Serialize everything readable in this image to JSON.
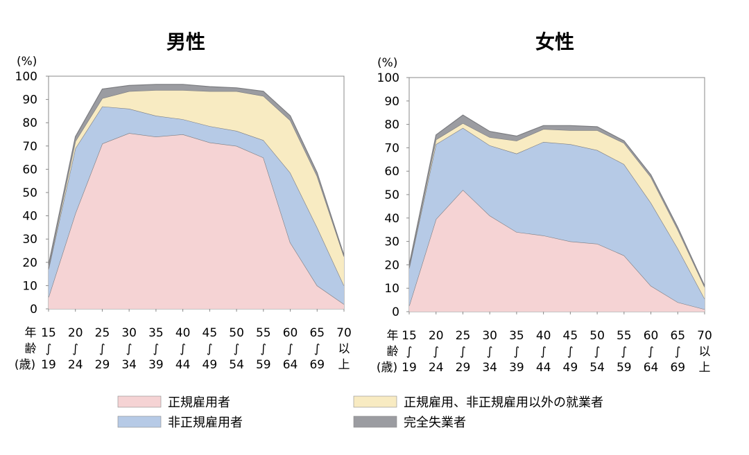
{
  "chart_data": [
    {
      "type": "area",
      "stacked": true,
      "title": "男性",
      "ylabel": "(%)",
      "ylim": [
        0,
        100
      ],
      "yticks": [
        "0",
        "10",
        "20",
        "30",
        "40",
        "50",
        "60",
        "70",
        "80",
        "90",
        "100"
      ],
      "x_header": [
        "年",
        "齢",
        "(歳)"
      ],
      "categories": [
        [
          "15",
          "∫",
          "19"
        ],
        [
          "20",
          "∫",
          "24"
        ],
        [
          "25",
          "∫",
          "29"
        ],
        [
          "30",
          "∫",
          "34"
        ],
        [
          "35",
          "∫",
          "39"
        ],
        [
          "40",
          "∫",
          "44"
        ],
        [
          "45",
          "∫",
          "49"
        ],
        [
          "50",
          "∫",
          "54"
        ],
        [
          "55",
          "∫",
          "59"
        ],
        [
          "60",
          "∫",
          "64"
        ],
        [
          "65",
          "∫",
          "69"
        ],
        [
          "70",
          "以",
          "上"
        ]
      ],
      "totals": [
        19,
        74,
        94.5,
        96,
        96.5,
        96.5,
        95.5,
        95,
        93.5,
        83,
        58.5,
        23
      ],
      "series": [
        {
          "name": "正規雇用者",
          "values": [
            5,
            41,
            71,
            75.5,
            74,
            75,
            71.5,
            70,
            65,
            28.5,
            10,
            2
          ]
        },
        {
          "name": "非正規雇用者",
          "values": [
            12,
            28,
            16,
            10.5,
            9,
            6.5,
            7,
            6.5,
            7.5,
            30,
            25,
            8
          ]
        },
        {
          "name": "正規雇用、非正規雇用以外の就業者",
          "values": [
            0.5,
            3,
            3.5,
            7.5,
            11,
            12.5,
            15,
            17,
            19,
            22.5,
            22,
            12.5
          ]
        },
        {
          "name": "完全失業者",
          "values": [
            1.5,
            2,
            4,
            2.5,
            2.5,
            2.5,
            2,
            1.5,
            2,
            2,
            1.5,
            0.5
          ]
        }
      ]
    },
    {
      "type": "area",
      "stacked": true,
      "title": "女性",
      "ylabel": "(%)",
      "ylim": [
        0,
        100
      ],
      "yticks": [
        "0",
        "10",
        "20",
        "30",
        "40",
        "50",
        "60",
        "70",
        "80",
        "90",
        "100"
      ],
      "x_header": [
        "年",
        "齢",
        "(歳)"
      ],
      "categories": [
        [
          "15",
          "∫",
          "19"
        ],
        [
          "20",
          "∫",
          "24"
        ],
        [
          "25",
          "∫",
          "29"
        ],
        [
          "30",
          "∫",
          "34"
        ],
        [
          "35",
          "∫",
          "39"
        ],
        [
          "40",
          "∫",
          "44"
        ],
        [
          "45",
          "∫",
          "49"
        ],
        [
          "50",
          "∫",
          "54"
        ],
        [
          "55",
          "∫",
          "59"
        ],
        [
          "60",
          "∫",
          "64"
        ],
        [
          "65",
          "∫",
          "69"
        ],
        [
          "70",
          "以",
          "上"
        ]
      ],
      "totals": [
        20,
        75.5,
        84,
        77,
        75,
        79.5,
        79.5,
        79,
        73,
        58.5,
        36,
        11
      ],
      "series": [
        {
          "name": "正規雇用者",
          "values": [
            2.5,
            39.5,
            52,
            41,
            34,
            32.5,
            30,
            29,
            24,
            11,
            4,
            1
          ]
        },
        {
          "name": "非正規雇用者",
          "values": [
            16,
            32,
            26.5,
            30,
            33.5,
            40,
            41.5,
            40,
            39,
            35.5,
            23,
            4.5
          ]
        },
        {
          "name": "正規雇用、非正規雇用以外の就業者",
          "values": [
            0.5,
            2,
            2,
            3.5,
            5.5,
            5.5,
            6,
            8.5,
            9,
            11,
            8,
            5
          ]
        },
        {
          "name": "完全失業者",
          "values": [
            1,
            2,
            3.5,
            2.5,
            2,
            1.5,
            2,
            1.5,
            1,
            1,
            1,
            0.5
          ]
        }
      ]
    }
  ],
  "legend": {
    "items": [
      {
        "label": "正規雇用者",
        "color": "#f5d3d4"
      },
      {
        "label": "非正規雇用者",
        "color": "#b6cae6"
      },
      {
        "label": "正規雇用、非正規雇用以外の就業者",
        "color": "#f8ebc2"
      },
      {
        "label": "完全失業者",
        "color": "#9b9ca1"
      }
    ]
  },
  "colors": {
    "regular": "#f5d3d4",
    "nonregular": "#b6cae6",
    "other": "#f8ebc2",
    "unemployed": "#9b9ca1",
    "series_line": "#7b7c80",
    "axis": "#888888"
  }
}
